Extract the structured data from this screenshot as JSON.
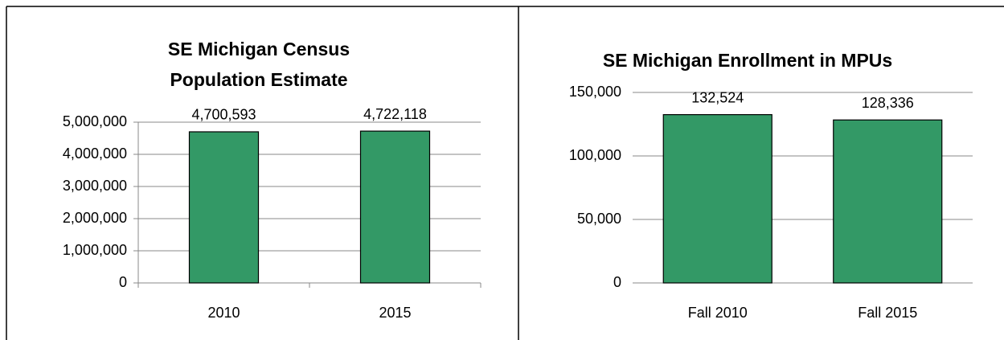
{
  "chart_data": [
    {
      "type": "bar",
      "title": "SE Michigan Census Population Estimate",
      "categories": [
        "2010",
        "2015"
      ],
      "values": [
        4700593,
        4722118
      ],
      "value_labels": [
        "4,700,593",
        "4,722,118"
      ],
      "color": "#339966",
      "ylim": [
        0,
        5000000
      ],
      "yticks": [
        0,
        {
          "value": 1000000,
          "label": "1,000,000"
        },
        {
          "value": 2000000,
          "label": "2,000,000"
        },
        {
          "value": 3000000,
          "label": "3,000,000"
        },
        {
          "value": 4000000,
          "label": "4,000,000"
        },
        {
          "value": 5000000,
          "label": "5,000,000"
        }
      ],
      "grid": true
    },
    {
      "type": "bar",
      "title": "SE Michigan Enrollment in MPUs",
      "categories": [
        "Fall 2010",
        "Fall 2015"
      ],
      "values": [
        132524,
        128336
      ],
      "value_labels": [
        "132,524",
        "128,336"
      ],
      "color": "#339966",
      "ylim": [
        0,
        150000
      ],
      "yticks": [
        0,
        {
          "value": 50000,
          "label": "50,000"
        },
        {
          "value": 100000,
          "label": "100,000"
        },
        {
          "value": 150000,
          "label": "150,000"
        }
      ],
      "grid": true
    }
  ]
}
